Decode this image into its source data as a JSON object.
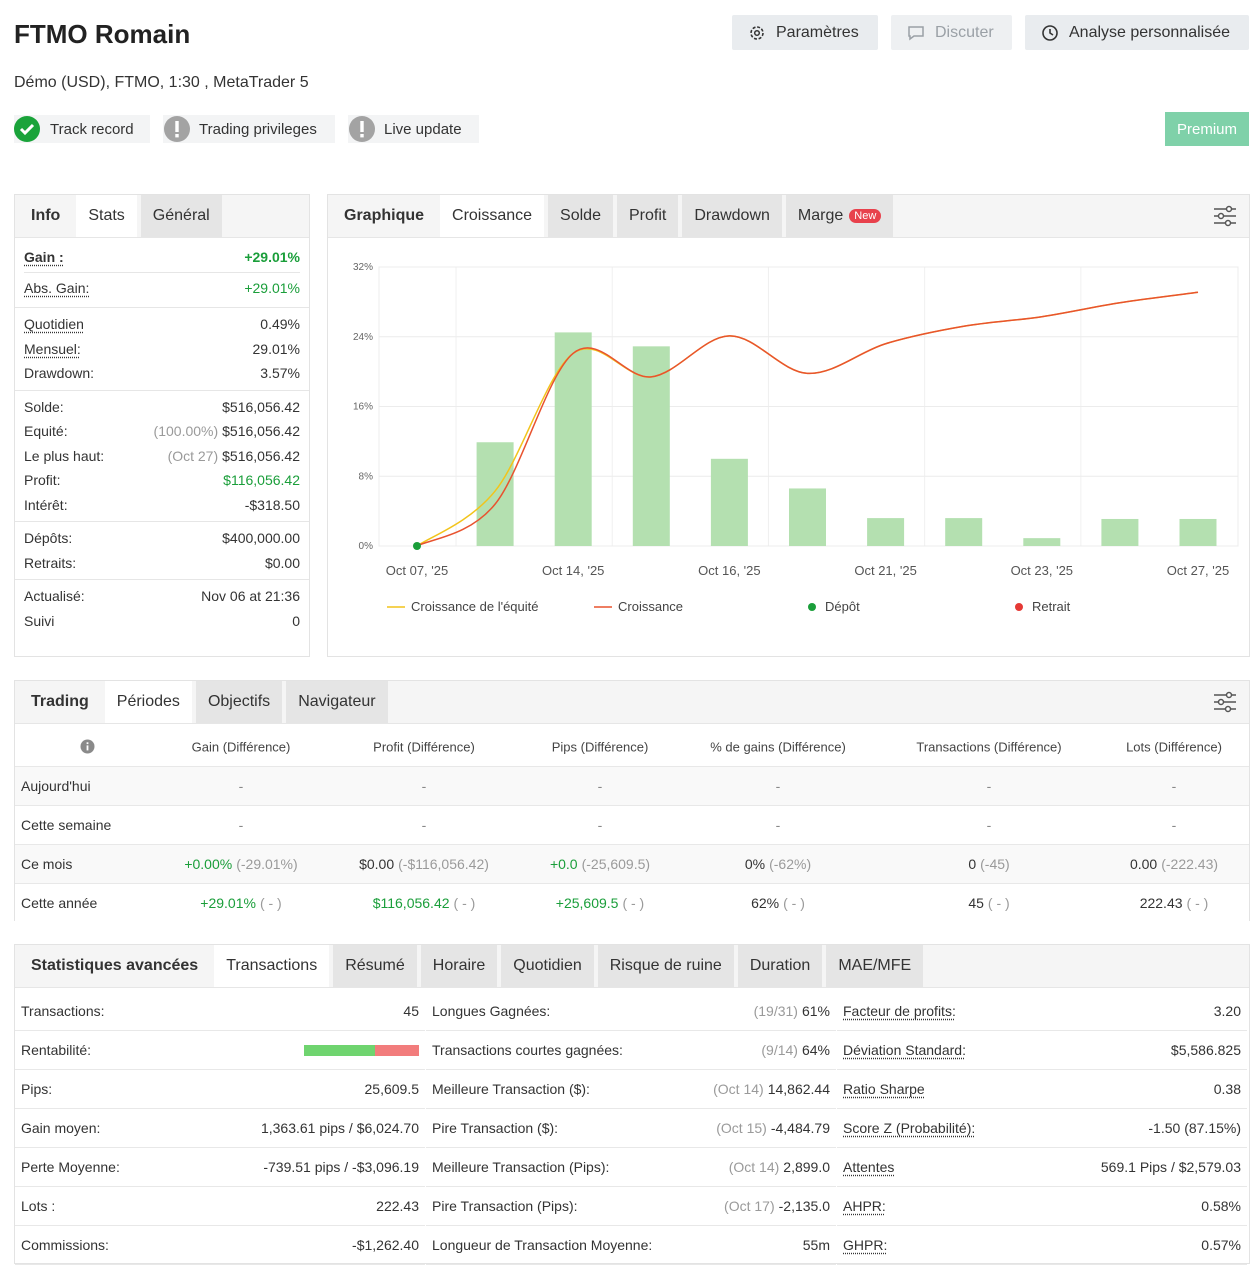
{
  "header": {
    "title": "FTMO Romain",
    "subtitle": "Démo (USD), FTMO, 1:30 , MetaTrader 5",
    "buttons": [
      "Paramètres",
      "Discuter",
      "Analyse personnalisée"
    ],
    "badges": [
      "Track record",
      "Trading privileges",
      "Live update"
    ],
    "premium": "Premium"
  },
  "info": {
    "tabs": [
      "Info",
      "Stats",
      "Général"
    ],
    "groups": [
      [
        {
          "label": "Gain :",
          "value": "+29.01%",
          "color": "#1a9e3a"
        },
        {
          "label": "Abs. Gain:",
          "value": "+29.01%",
          "color": "#1a9e3a"
        }
      ],
      [
        {
          "label": "Quotidien",
          "value": "0.49%"
        },
        {
          "label": "Mensuel:",
          "value": "29.01%"
        },
        {
          "label": "Drawdown:",
          "value": "3.57%"
        }
      ],
      [
        {
          "label": "Solde:",
          "value": "$516,056.42"
        },
        {
          "label": "Equité:",
          "note": "(100.00%)",
          "value": "$516,056.42"
        },
        {
          "label": "Le plus haut:",
          "note": "(Oct 27)",
          "value": "$516,056.42"
        },
        {
          "label": "Profit:",
          "value": "$116,056.42",
          "color": "#1a9e3a"
        },
        {
          "label": "Intérêt:",
          "value": "-$318.50"
        }
      ],
      [
        {
          "label": "Dépôts:",
          "value": "$400,000.00"
        },
        {
          "label": "Retraits:",
          "value": "$0.00"
        }
      ],
      [
        {
          "label": "Actualisé:",
          "value": "Nov 06 at 21:36"
        },
        {
          "label": "Suivi",
          "value": "0"
        }
      ]
    ]
  },
  "chart_panel": {
    "tabs": [
      "Graphique",
      "Croissance",
      "Solde",
      "Profit",
      "Drawdown",
      "Marge"
    ],
    "new_badge": "New"
  },
  "chart_data": {
    "type": "combo",
    "categories": [
      "Oct 07, '25",
      null,
      "Oct 14, '25",
      null,
      "Oct 16, '25",
      null,
      "Oct 21, '25",
      null,
      "Oct 23, '25",
      null,
      "Oct 27, '25"
    ],
    "bars": {
      "color": "#b4e0b0",
      "values": [
        null,
        11.9,
        24.5,
        22.9,
        10.0,
        6.6,
        3.2,
        3.2,
        0.9,
        3.1,
        3.1
      ]
    },
    "series": [
      {
        "name": "Croissance de l'équité",
        "color": "#f2c41b",
        "style": "line",
        "values": [
          0,
          6.3,
          22.1,
          19.4,
          24.1,
          19.8,
          23.2,
          25.2,
          26.3,
          27.9,
          29.1
        ]
      },
      {
        "name": "Croissance",
        "color": "#e8532f",
        "style": "line",
        "values": [
          0,
          4.8,
          22.1,
          19.4,
          24.1,
          19.8,
          23.2,
          25.2,
          26.3,
          27.9,
          29.1
        ]
      },
      {
        "name": "Dépôt",
        "color": "#1a9e3a",
        "style": "point",
        "values": [
          0,
          null,
          null,
          null,
          null,
          null,
          null,
          null,
          null,
          null,
          null
        ]
      },
      {
        "name": "Retrait",
        "color": "#e53935",
        "style": "point",
        "values": [
          null,
          null,
          null,
          null,
          null,
          null,
          null,
          null,
          null,
          null,
          null
        ]
      }
    ],
    "ylim": [
      0,
      32
    ],
    "yticks": [
      {
        "value": 0,
        "label": "0%"
      },
      {
        "value": 8,
        "label": "8%"
      },
      {
        "value": 16,
        "label": "16%"
      },
      {
        "value": 24,
        "label": "24%"
      },
      {
        "value": 32,
        "label": "32%"
      }
    ],
    "grid": true
  },
  "trading": {
    "tabs": [
      "Trading",
      "Périodes",
      "Objectifs",
      "Navigateur"
    ],
    "columns": [
      "Gain (Différence)",
      "Profit (Différence)",
      "Pips (Différence)",
      "% de gains (Différence)",
      "Transactions (Différence)",
      "Lots (Différence)"
    ],
    "rows": [
      {
        "label": "Aujourd'hui",
        "cells": [
          {
            "text": "-"
          },
          {
            "text": "-"
          },
          {
            "text": "-"
          },
          {
            "text": "-"
          },
          {
            "text": "-"
          },
          {
            "text": "-"
          }
        ]
      },
      {
        "label": "Cette semaine",
        "cells": [
          {
            "text": "-"
          },
          {
            "text": "-"
          },
          {
            "text": "-"
          },
          {
            "text": "-"
          },
          {
            "text": "-"
          },
          {
            "text": "-"
          }
        ]
      },
      {
        "label": "Ce mois",
        "cells": [
          {
            "text": "+0.00%",
            "note": "(-29.01%)",
            "color": "#1a9e3a"
          },
          {
            "text": "$0.00",
            "note": "(-$116,056.42)"
          },
          {
            "text": "+0.0",
            "note": "(-25,609.5)",
            "color": "#1a9e3a"
          },
          {
            "text": "0%",
            "note": "(-62%)"
          },
          {
            "text": "0",
            "note": "(-45)"
          },
          {
            "text": "0.00",
            "note": "(-222.43)"
          }
        ]
      },
      {
        "label": "Cette année",
        "cells": [
          {
            "text": "+29.01%",
            "note": "( - )",
            "color": "#1a9e3a"
          },
          {
            "text": "$116,056.42",
            "note": "( - )",
            "color": "#1a9e3a"
          },
          {
            "text": "+25,609.5",
            "note": "( - )",
            "color": "#1a9e3a"
          },
          {
            "text": "62%",
            "note": "( - )"
          },
          {
            "text": "45",
            "note": "( - )"
          },
          {
            "text": "222.43",
            "note": "( - )"
          }
        ]
      }
    ]
  },
  "advanced": {
    "tabs": [
      "Statistiques avancées",
      "Transactions",
      "Résumé",
      "Horaire",
      "Quotidien",
      "Risque de ruine",
      "Duration",
      "MAE/MFE"
    ],
    "columns": [
      [
        {
          "label": "Transactions:",
          "value": "45"
        },
        {
          "label": "Rentabilité:",
          "bar": [
            {
              "value": 62,
              "color": "#6fd46f"
            },
            {
              "value": 38,
              "color": "#f27c7c"
            }
          ]
        },
        {
          "label": "Pips:",
          "value": "25,609.5"
        },
        {
          "label": "Gain moyen:",
          "value": "1,363.61 pips / $6,024.70"
        },
        {
          "label": "Perte Moyenne:",
          "value": "-739.51 pips / -$3,096.19"
        },
        {
          "label": "Lots :",
          "value": "222.43"
        },
        {
          "label": "Commissions:",
          "value": "-$1,262.40"
        }
      ],
      [
        {
          "label": "Longues Gagnées:",
          "note": "(19/31)",
          "value": "61%"
        },
        {
          "label": "Transactions courtes gagnées:",
          "note": "(9/14)",
          "value": "64%"
        },
        {
          "label": "Meilleure Transaction ($):",
          "note": "(Oct 14)",
          "value": "14,862.44"
        },
        {
          "label": "Pire Transaction ($):",
          "note": "(Oct 15)",
          "value": "-4,484.79"
        },
        {
          "label": "Meilleure Transaction (Pips):",
          "note": "(Oct 14)",
          "value": "2,899.0"
        },
        {
          "label": "Pire Transaction (Pips):",
          "note": "(Oct 17)",
          "value": "-2,135.0"
        },
        {
          "label": "Longueur de Transaction Moyenne:",
          "value": "55m"
        }
      ],
      [
        {
          "label": "Facteur de profits:",
          "value": "3.20"
        },
        {
          "label": "Déviation Standard:",
          "value": "$5,586.825"
        },
        {
          "label": "Ratio Sharpe",
          "value": "0.38"
        },
        {
          "label": "Score Z (Probabilité):",
          "value": "-1.50 (87.15%)"
        },
        {
          "label": "Attentes",
          "value": "569.1 Pips / $2,579.03"
        },
        {
          "label": "AHPR:",
          "value": "0.58%"
        },
        {
          "label": "GHPR:",
          "value": "0.57%"
        }
      ]
    ]
  }
}
